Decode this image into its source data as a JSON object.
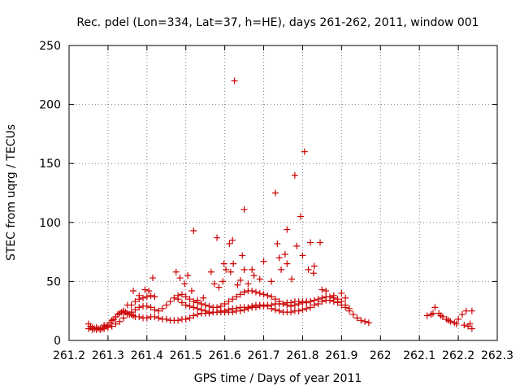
{
  "chart_data": {
    "type": "scatter",
    "title": "Rec. pdel (Lon=334, Lat=37, h=HE), days 261-262, 2011, window 001",
    "xlabel": "GPS time / Days of year 2011",
    "ylabel": "STEC from uqrg / TECUs",
    "xlim": [
      261.2,
      262.3
    ],
    "ylim": [
      0,
      250
    ],
    "xticks": [
      261.2,
      261.3,
      261.4,
      261.5,
      261.6,
      261.7,
      261.8,
      261.9,
      262,
      262.1,
      262.2,
      262.3
    ],
    "xtick_labels": [
      "261.2",
      "261.3",
      "261.4",
      "261.5",
      "261.6",
      "261.7",
      "261.8",
      "261.9",
      "262",
      "262.1",
      "262.2",
      "262.3"
    ],
    "yticks": [
      0,
      50,
      100,
      150,
      200,
      250
    ],
    "ytick_labels": [
      "0",
      "50",
      "100",
      "150",
      "200",
      "250"
    ],
    "grid": true,
    "marker": "plus",
    "color": "#cc0000",
    "series": [
      {
        "name": "STEC",
        "x": [
          261.25,
          261.255,
          261.26,
          261.265,
          261.27,
          261.275,
          261.28,
          261.285,
          261.29,
          261.295,
          261.3,
          261.305,
          261.31,
          261.315,
          261.32,
          261.325,
          261.33,
          261.335,
          261.34,
          261.345,
          261.35,
          261.355,
          261.36,
          261.365,
          261.37,
          261.38,
          261.39,
          261.4,
          261.41,
          261.42,
          261.43,
          261.44,
          261.45,
          261.46,
          261.47,
          261.48,
          261.49,
          261.5,
          261.51,
          261.52,
          261.53,
          261.54,
          261.55,
          261.56,
          261.57,
          261.58,
          261.59,
          261.6,
          261.61,
          261.62,
          261.63,
          261.64,
          261.65,
          261.66,
          261.67,
          261.68,
          261.69,
          261.7,
          261.71,
          261.72,
          261.73,
          261.74,
          261.75,
          261.76,
          261.77,
          261.78,
          261.79,
          261.8,
          261.81,
          261.82,
          261.83,
          261.84,
          261.85,
          261.86,
          261.87,
          261.88,
          261.89,
          261.9,
          261.91,
          261.92,
          261.93,
          261.94,
          261.95,
          261.96,
          261.97,
          261.25,
          261.26,
          261.27,
          261.28,
          261.29,
          261.3,
          261.31,
          261.32,
          261.33,
          261.34,
          261.35,
          261.36,
          261.37,
          261.38,
          261.39,
          261.4,
          261.41,
          261.42,
          261.43,
          261.44,
          261.45,
          261.46,
          261.47,
          261.48,
          261.49,
          261.5,
          261.51,
          261.52,
          261.53,
          261.54,
          261.55,
          261.56,
          261.57,
          261.58,
          261.59,
          261.6,
          261.61,
          261.62,
          261.63,
          261.64,
          261.65,
          261.66,
          261.67,
          261.68,
          261.69,
          261.7,
          261.71,
          261.72,
          261.73,
          261.74,
          261.75,
          261.76,
          261.77,
          261.78,
          261.79,
          261.8,
          261.81,
          261.82,
          261.83,
          261.84,
          261.85,
          261.86,
          261.87,
          261.88,
          261.89,
          261.9,
          261.91,
          261.92,
          261.36,
          261.37,
          261.38,
          261.39,
          261.4,
          261.41,
          261.42,
          261.48,
          261.49,
          261.5,
          261.51,
          261.52,
          261.53,
          261.54,
          261.55,
          261.56,
          261.57,
          261.58,
          261.59,
          261.6,
          261.61,
          261.62,
          261.63,
          261.64,
          261.65,
          261.66,
          261.67,
          261.68,
          261.69,
          261.7,
          261.71,
          261.72,
          261.73,
          261.74,
          261.75,
          261.76,
          261.77,
          261.78,
          261.79,
          261.8,
          261.81,
          261.82,
          261.475,
          261.485,
          261.497,
          261.505,
          261.515,
          261.545,
          261.565,
          261.573,
          261.585,
          261.595,
          261.598,
          261.603,
          261.612,
          261.615,
          261.622,
          261.625,
          261.633,
          261.64,
          261.645,
          261.65,
          261.66,
          261.675,
          261.69,
          261.72,
          261.735,
          261.745,
          261.755,
          261.76,
          261.772,
          261.785,
          261.795,
          261.805,
          261.815,
          261.82,
          261.828,
          261.845,
          261.86,
          261.88,
          261.9,
          261.91,
          261.29,
          261.31,
          261.34,
          261.35,
          261.365,
          261.38,
          261.395,
          261.405,
          261.415,
          261.52,
          261.53,
          261.58,
          261.62,
          261.65,
          261.67,
          261.7,
          261.73,
          261.74,
          261.76,
          261.78,
          261.8,
          261.83,
          261.85,
          262.12,
          262.13,
          262.14,
          262.15,
          262.16,
          262.17,
          262.18,
          262.19,
          262.2,
          262.21,
          262.22,
          262.23,
          262.135,
          262.155,
          262.175,
          262.195,
          262.215,
          262.225,
          262.235,
          262.235
        ],
        "y": [
          14,
          12,
          11,
          10,
          11,
          10,
          9,
          10,
          11,
          12,
          13,
          15,
          17,
          18,
          20,
          22,
          23,
          24,
          25,
          24,
          23,
          22,
          22,
          21,
          20,
          20,
          19,
          19,
          20,
          20,
          19,
          18,
          18,
          17,
          17,
          17,
          18,
          18,
          19,
          21,
          22,
          23,
          23,
          23,
          24,
          24,
          25,
          25,
          26,
          27,
          27,
          28,
          28,
          28,
          29,
          30,
          30,
          30,
          29,
          27,
          26,
          25,
          24,
          24,
          24,
          25,
          25,
          26,
          27,
          28,
          30,
          31,
          33,
          34,
          34,
          33,
          32,
          30,
          28,
          25,
          22,
          19,
          17,
          16,
          15,
          10,
          9,
          9,
          10,
          10,
          11,
          12,
          14,
          16,
          19,
          22,
          24,
          26,
          28,
          29,
          29,
          28,
          26,
          25,
          27,
          30,
          33,
          36,
          38,
          39,
          37,
          35,
          33,
          32,
          31,
          30,
          29,
          28,
          28,
          29,
          31,
          33,
          35,
          37,
          39,
          41,
          42,
          42,
          41,
          40,
          39,
          38,
          37,
          35,
          33,
          31,
          30,
          29,
          30,
          31,
          32,
          32,
          33,
          34,
          35,
          36,
          37,
          37,
          36,
          35,
          33,
          30,
          27,
          30,
          33,
          35,
          36,
          37,
          38,
          37,
          35,
          32,
          30,
          29,
          28,
          27,
          26,
          25,
          24,
          24,
          24,
          24,
          24,
          24,
          24,
          25,
          25,
          26,
          27,
          28,
          28,
          29,
          29,
          30,
          30,
          31,
          31,
          31,
          32,
          32,
          33,
          33,
          33,
          33,
          33,
          58,
          53,
          48,
          55,
          42,
          36,
          58,
          48,
          45,
          50,
          65,
          60,
          82,
          58,
          65,
          220,
          47,
          51,
          72,
          60,
          48,
          55,
          52,
          50,
          82,
          60,
          73,
          65,
          52,
          80,
          105,
          160,
          60,
          83,
          57,
          83,
          42,
          38,
          40,
          36,
          13,
          17,
          25,
          30,
          42,
          38,
          43,
          42,
          53,
          93,
          34,
          87,
          85,
          111,
          60,
          67,
          125,
          70,
          94,
          140,
          72,
          63,
          43,
          21,
          22,
          28,
          23,
          20,
          18,
          16,
          15,
          18,
          22,
          25,
          14,
          23,
          21,
          17,
          14,
          13,
          12,
          10,
          25
        ]
      }
    ]
  }
}
